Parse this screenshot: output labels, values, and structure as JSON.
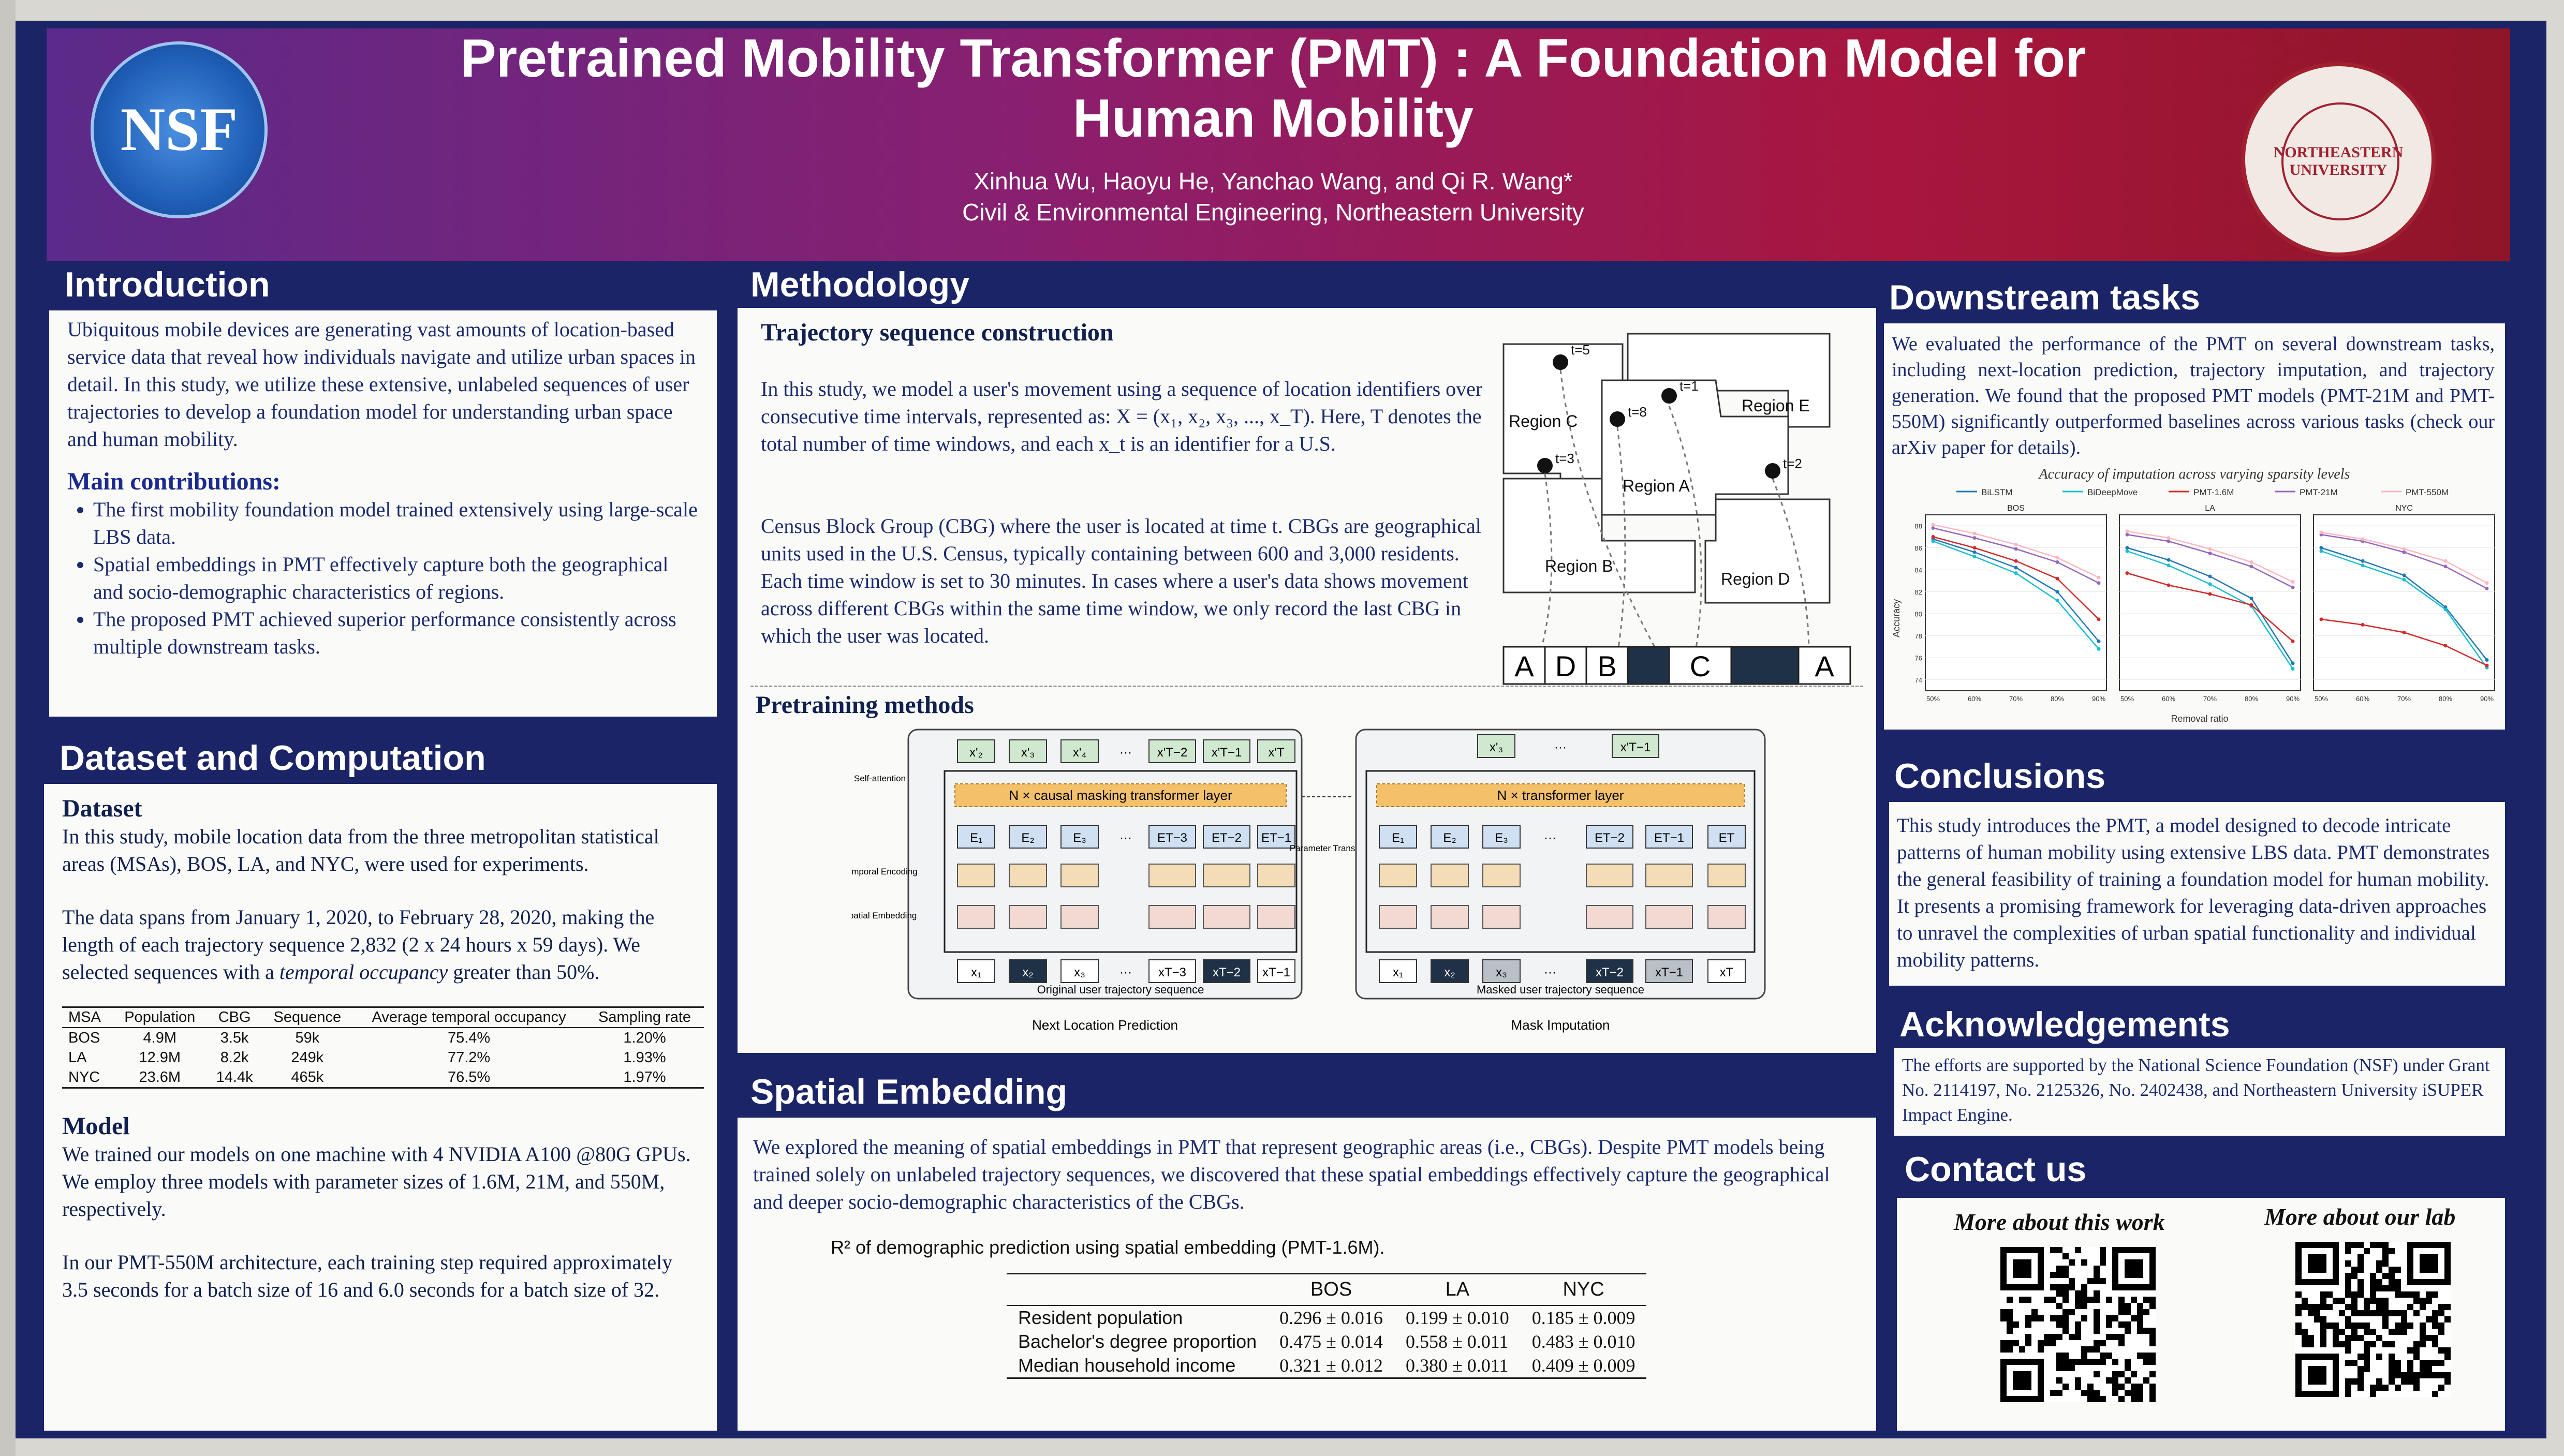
{
  "header": {
    "title_line1": "Pretrained Mobility Transformer (PMT) : A Foundation Model for",
    "title_line2": "Human Mobility",
    "authors": "Xinhua Wu, Haoyu He, Yanchao Wang, and Qi R. Wang*",
    "affiliation": "Civil & Environmental Engineering, Northeastern University",
    "nsf_logo": "NSF",
    "seal_text": "NORTHEASTERN UNIVERSITY"
  },
  "introduction": {
    "heading": "Introduction",
    "body": "Ubiquitous mobile devices are generating vast amounts of location-based service data that reveal how individuals navigate and utilize urban spaces in detail. In this study, we utilize these extensive, unlabeled sequences of user trajectories to develop a foundation model for understanding urban space and human mobility.",
    "contrib_heading": "Main contributions:",
    "contributions": [
      "The first mobility foundation model trained extensively using large-scale LBS data.",
      "Spatial embeddings in PMT effectively capture both the geographical and socio-demographic characteristics of regions.",
      "The proposed PMT achieved superior performance consistently across multiple downstream tasks."
    ]
  },
  "dataset": {
    "heading": "Dataset and Computation",
    "sub1": "Dataset",
    "p1": "In this study, mobile location data from the three metropolitan statistical areas (MSAs), BOS, LA, and NYC, were used for experiments.",
    "p2_a": "The data spans from January 1, 2020, to February 28, 2020, making the length of each trajectory sequence 2,832 (2 x 24 hours x 59 days). We selected sequences with a ",
    "p2_em": "temporal occupancy",
    "p2_b": " greater than 50%.",
    "table_headers": [
      "MSA",
      "Population",
      "CBG",
      "Sequence",
      "Average temporal occupancy",
      "Sampling rate"
    ],
    "table_rows": [
      [
        "BOS",
        "4.9M",
        "3.5k",
        "59k",
        "75.4%",
        "1.20%"
      ],
      [
        "LA",
        "12.9M",
        "8.2k",
        "249k",
        "77.2%",
        "1.93%"
      ],
      [
        "NYC",
        "23.6M",
        "14.4k",
        "465k",
        "76.5%",
        "1.97%"
      ]
    ],
    "sub2": "Model",
    "p3": "We trained our models on one machine with 4 NVIDIA A100 @80G GPUs. We employ three models with parameter sizes of 1.6M, 21M, and 550M, respectively.",
    "p4": "In our PMT-550M architecture, each training step required approximately 3.5 seconds for a batch size of 16 and 6.0 seconds for a batch size of 32."
  },
  "methodology": {
    "heading": "Methodology",
    "sub1": "Trajectory sequence construction",
    "p1": "In this study, we model a user's movement using a sequence of location identifiers over consecutive time intervals, represented as: X = (x₁, x₂, x₃, ..., x_T). Here, T denotes the total number of time windows, and each x_t is an identifier for a U.S.",
    "p2": "Census Block Group (CBG) where the user is located at time t. CBGs are geographical units used in the U.S. Census, typically containing between 600 and 3,000 residents. Each time window is set to 30 minutes. In cases where a user's data shows movement across different CBGs within the same time window, we only record the last CBG in which the user was located.",
    "regions": [
      "Region C",
      "Region E",
      "Region A",
      "Region B",
      "Region D"
    ],
    "times": [
      "t=5",
      "t=1",
      "t=8",
      "t=3",
      "t=2"
    ],
    "sequence": [
      "A",
      "D",
      "B",
      "",
      "C",
      "",
      "A"
    ],
    "sub2": "Pretraining methods",
    "left_top_tokens": [
      "x'₂",
      "x'₃",
      "x'₄",
      "···",
      "x'T−2",
      "x'T−1",
      "x'T"
    ],
    "left_layer": "N × causal masking transformer layer",
    "left_emb": [
      "E₁",
      "E₂",
      "E₃",
      "···",
      "ET−3",
      "ET−2",
      "ET−1"
    ],
    "left_inputs": [
      "x₁",
      "x₂",
      "x₃",
      "···",
      "xT−3",
      "xT−2",
      "xT−1"
    ],
    "left_caption": "Original user trajectory sequence",
    "left_task": "Next Location Prediction",
    "side_labels": [
      "Self-attention",
      "Temporal Encoding",
      "Spatial Embedding"
    ],
    "param_transfer": "Parameter Transfer",
    "right_top_tokens": [
      "x'₃",
      "···",
      "x'T−1"
    ],
    "right_layer": "N × transformer layer",
    "right_emb": [
      "E₁",
      "E₂",
      "E₃",
      "···",
      "ET−2",
      "ET−1",
      "ET"
    ],
    "right_inputs": [
      "x₁",
      "x₂",
      "x₃",
      "···",
      "xT−2",
      "xT−1",
      "xT"
    ],
    "right_caption": "Masked user trajectory sequence",
    "right_task": "Mask Imputation"
  },
  "spatial": {
    "heading": "Spatial Embedding",
    "body": "We explored the meaning of spatial embeddings in PMT that represent geographic areas (i.e., CBGs). Despite PMT models being trained solely on unlabeled trajectory sequences, we discovered that these spatial embeddings effectively capture the geographical and deeper socio-demographic characteristics of the CBGs.",
    "caption": "R² of demographic prediction using spatial embedding (PMT-1.6M).",
    "headers": [
      "",
      "BOS",
      "LA",
      "NYC"
    ],
    "rows": [
      [
        "Resident population",
        "0.296 ± 0.016",
        "0.199 ± 0.010",
        "0.185 ± 0.009"
      ],
      [
        "Bachelor's degree proportion",
        "0.475 ± 0.014",
        "0.558 ± 0.011",
        "0.483 ± 0.010"
      ],
      [
        "Median household income",
        "0.321 ± 0.012",
        "0.380 ± 0.011",
        "0.409 ± 0.009"
      ]
    ]
  },
  "downstream": {
    "heading": "Downstream tasks",
    "body": "We evaluated the performance of the PMT on several downstream tasks, including next-location prediction, trajectory imputation, and trajectory generation. We found that the proposed PMT models (PMT-21M and PMT-550M) significantly outperformed baselines across various tasks (check our arXiv paper for details)."
  },
  "chart_data": {
    "type": "line",
    "title": "Accuracy of imputation across varying sparsity levels",
    "xlabel": "Removal ratio",
    "ylabel": "Accuracy",
    "x": [
      "50%",
      "60%",
      "70%",
      "80%",
      "90%"
    ],
    "ylim": [
      73,
      89
    ],
    "yticks": [
      74,
      76,
      78,
      80,
      82,
      84,
      86,
      88
    ],
    "legend_position": "top",
    "series_names": [
      "BiLSTM",
      "BiDeepMove",
      "PMT-1.6M",
      "PMT-21M",
      "PMT-550M"
    ],
    "series_colors": [
      "#1f77b4",
      "#17becf",
      "#d62728",
      "#9467bd",
      "#ffb6c1"
    ],
    "panels": [
      {
        "name": "BOS",
        "series": [
          [
            86.8,
            85.6,
            84.2,
            82.0,
            77.5
          ],
          [
            86.6,
            85.2,
            83.7,
            81.2,
            76.8
          ],
          [
            87.0,
            86.0,
            84.8,
            83.2,
            79.5
          ],
          [
            87.8,
            86.9,
            85.9,
            84.7,
            82.8
          ],
          [
            88.1,
            87.3,
            86.3,
            85.1,
            83.3
          ]
        ]
      },
      {
        "name": "LA",
        "series": [
          [
            86.0,
            84.9,
            83.4,
            81.4,
            75.5
          ],
          [
            85.7,
            84.4,
            82.7,
            80.7,
            75.0
          ],
          [
            83.7,
            82.6,
            81.8,
            80.8,
            77.5
          ],
          [
            87.2,
            86.6,
            85.5,
            84.3,
            82.4
          ],
          [
            87.5,
            86.9,
            85.9,
            84.7,
            82.9
          ]
        ]
      },
      {
        "name": "NYC",
        "series": [
          [
            86.0,
            84.8,
            83.5,
            80.6,
            75.8
          ],
          [
            85.7,
            84.4,
            83.1,
            80.4,
            75.1
          ],
          [
            79.5,
            79.0,
            78.3,
            77.1,
            75.3
          ],
          [
            87.2,
            86.6,
            85.6,
            84.3,
            82.3
          ],
          [
            87.4,
            86.8,
            85.9,
            84.8,
            82.8
          ]
        ]
      }
    ]
  },
  "conclusions": {
    "heading": "Conclusions",
    "body": "This study introduces the PMT, a model designed to decode intricate patterns of human mobility using extensive LBS data. PMT demonstrates the general feasibility of training a foundation model for human mobility. It presents a promising framework for leveraging data-driven approaches to unravel the complexities of urban spatial functionality and individual mobility patterns."
  },
  "acknowledgements": {
    "heading": "Acknowledgements",
    "body": "The efforts are supported by the National Science Foundation (NSF) under Grant No. 2114197, No. 2125326, No. 2402438, and Northeastern University iSUPER Impact Engine."
  },
  "contact": {
    "heading": "Contact us",
    "work_label": "More about this work",
    "lab_label": "More about our lab"
  }
}
